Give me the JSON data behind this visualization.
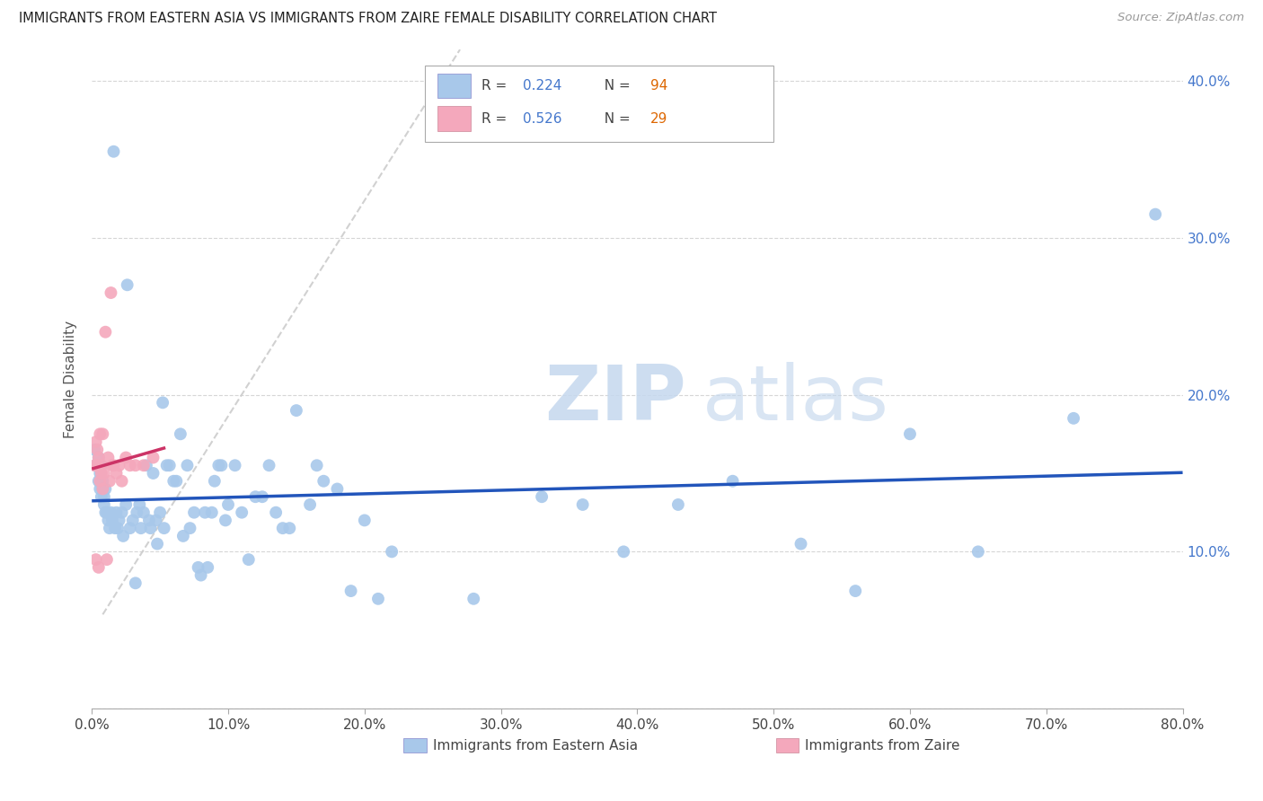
{
  "title": "IMMIGRANTS FROM EASTERN ASIA VS IMMIGRANTS FROM ZAIRE FEMALE DISABILITY CORRELATION CHART",
  "source": "Source: ZipAtlas.com",
  "ylabel": "Female Disability",
  "watermark": "ZIPatlas",
  "series1": {
    "name": "Immigrants from Eastern Asia",
    "R": 0.224,
    "N": 94,
    "marker_color": "#a8c8ea",
    "line_color": "#2255bb",
    "x": [
      0.002,
      0.003,
      0.004,
      0.005,
      0.005,
      0.006,
      0.006,
      0.007,
      0.007,
      0.008,
      0.008,
      0.009,
      0.009,
      0.01,
      0.01,
      0.011,
      0.012,
      0.013,
      0.014,
      0.015,
      0.016,
      0.017,
      0.018,
      0.019,
      0.02,
      0.022,
      0.023,
      0.025,
      0.026,
      0.028,
      0.03,
      0.032,
      0.033,
      0.035,
      0.036,
      0.038,
      0.04,
      0.042,
      0.043,
      0.045,
      0.047,
      0.048,
      0.05,
      0.052,
      0.053,
      0.055,
      0.057,
      0.06,
      0.062,
      0.065,
      0.067,
      0.07,
      0.072,
      0.075,
      0.078,
      0.08,
      0.083,
      0.085,
      0.088,
      0.09,
      0.093,
      0.095,
      0.098,
      0.1,
      0.105,
      0.11,
      0.115,
      0.12,
      0.125,
      0.13,
      0.135,
      0.14,
      0.145,
      0.15,
      0.16,
      0.165,
      0.17,
      0.18,
      0.19,
      0.2,
      0.21,
      0.22,
      0.28,
      0.33,
      0.36,
      0.39,
      0.43,
      0.47,
      0.52,
      0.56,
      0.6,
      0.65,
      0.72,
      0.78
    ],
    "y": [
      0.165,
      0.155,
      0.155,
      0.145,
      0.16,
      0.14,
      0.15,
      0.135,
      0.155,
      0.14,
      0.145,
      0.135,
      0.13,
      0.125,
      0.14,
      0.125,
      0.12,
      0.115,
      0.125,
      0.12,
      0.355,
      0.115,
      0.125,
      0.115,
      0.12,
      0.125,
      0.11,
      0.13,
      0.27,
      0.115,
      0.12,
      0.08,
      0.125,
      0.13,
      0.115,
      0.125,
      0.155,
      0.12,
      0.115,
      0.15,
      0.12,
      0.105,
      0.125,
      0.195,
      0.115,
      0.155,
      0.155,
      0.145,
      0.145,
      0.175,
      0.11,
      0.155,
      0.115,
      0.125,
      0.09,
      0.085,
      0.125,
      0.09,
      0.125,
      0.145,
      0.155,
      0.155,
      0.12,
      0.13,
      0.155,
      0.125,
      0.095,
      0.135,
      0.135,
      0.155,
      0.125,
      0.115,
      0.115,
      0.19,
      0.13,
      0.155,
      0.145,
      0.14,
      0.075,
      0.12,
      0.07,
      0.1,
      0.07,
      0.135,
      0.13,
      0.1,
      0.13,
      0.145,
      0.105,
      0.075,
      0.175,
      0.1,
      0.185,
      0.315
    ]
  },
  "series2": {
    "name": "Immigrants from Zaire",
    "R": 0.526,
    "N": 29,
    "marker_color": "#f4a8bc",
    "line_color": "#cc3366",
    "x": [
      0.002,
      0.003,
      0.003,
      0.004,
      0.004,
      0.005,
      0.005,
      0.006,
      0.006,
      0.007,
      0.007,
      0.008,
      0.008,
      0.009,
      0.01,
      0.011,
      0.012,
      0.013,
      0.014,
      0.015,
      0.016,
      0.018,
      0.02,
      0.022,
      0.025,
      0.028,
      0.032,
      0.038,
      0.045
    ],
    "y": [
      0.155,
      0.17,
      0.095,
      0.165,
      0.155,
      0.09,
      0.16,
      0.145,
      0.175,
      0.155,
      0.15,
      0.14,
      0.175,
      0.15,
      0.24,
      0.095,
      0.16,
      0.145,
      0.265,
      0.155,
      0.155,
      0.15,
      0.155,
      0.145,
      0.16,
      0.155,
      0.155,
      0.155,
      0.16
    ]
  },
  "xlim": [
    0.0,
    0.8
  ],
  "ylim": [
    0.0,
    0.42
  ],
  "xticks": [
    0.0,
    0.1,
    0.2,
    0.3,
    0.4,
    0.5,
    0.6,
    0.7,
    0.8
  ],
  "yticks_right": [
    0.1,
    0.2,
    0.3,
    0.4
  ],
  "xtick_labels": [
    "0.0%",
    "10.0%",
    "20.0%",
    "30.0%",
    "40.0%",
    "50.0%",
    "60.0%",
    "70.0%",
    "80.0%"
  ],
  "ytick_labels_right": [
    "10.0%",
    "20.0%",
    "30.0%",
    "40.0%"
  ],
  "grid_color": "#cccccc",
  "background_color": "#ffffff",
  "legend_R_color": "#4477cc",
  "legend_N_color": "#dd6600",
  "marker_size": 100,
  "line_width": 2.5,
  "dash_line_color": "#cccccc"
}
